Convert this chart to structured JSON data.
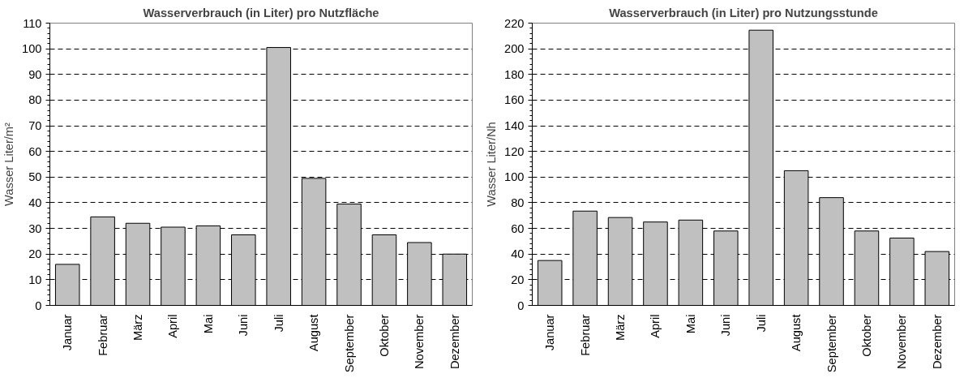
{
  "chart_data": [
    {
      "type": "bar",
      "title": "Wasserverbrauch (in Liter) pro Nutzfläche",
      "ylabel": "Wasser Liter/m²",
      "categories": [
        "Januar",
        "Februar",
        "März",
        "April",
        "Mai",
        "Juni",
        "Juli",
        "August",
        "September",
        "Oktober",
        "November",
        "Dezember"
      ],
      "values": [
        16,
        34.5,
        32,
        30.5,
        31,
        27.5,
        100.5,
        49.5,
        39.5,
        27.5,
        24.5,
        20
      ],
      "color": "#c0c0c0",
      "ylim": [
        0,
        110
      ],
      "yticks": [
        0,
        10,
        20,
        30,
        40,
        50,
        60,
        70,
        80,
        90,
        100,
        110
      ],
      "grid": "y"
    },
    {
      "type": "bar",
      "title": "Wasserverbrauch (in Liter) pro Nutzungsstunde",
      "ylabel": "Wasser Liter/Nh",
      "categories": [
        "Januar",
        "Februar",
        "März",
        "April",
        "Mai",
        "Juni",
        "Juli",
        "August",
        "September",
        "Oktober",
        "November",
        "Dezember"
      ],
      "values": [
        35,
        73.5,
        68.5,
        65,
        66.5,
        58,
        214.5,
        105,
        84,
        58,
        52.5,
        42
      ],
      "color": "#c0c0c0",
      "ylim": [
        0,
        220
      ],
      "yticks": [
        0,
        20,
        40,
        60,
        80,
        100,
        120,
        140,
        160,
        180,
        200,
        220
      ],
      "grid": "y"
    }
  ]
}
